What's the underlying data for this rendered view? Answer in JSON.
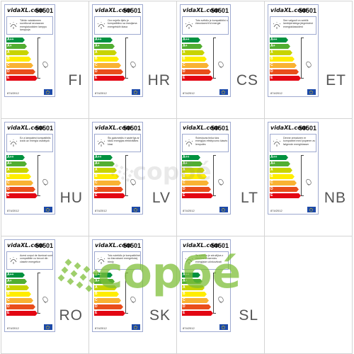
{
  "label": {
    "brand": "vidaXL.com",
    "model": "50501",
    "regulation": "874/2012",
    "classes": [
      "A++",
      "A+",
      "A",
      "B",
      "C",
      "D",
      "E"
    ],
    "class_colors": [
      "#00923f",
      "#52ae32",
      "#c8d400",
      "#ffed00",
      "#f9b233",
      "#e94e1b",
      "#e30613"
    ]
  },
  "cells": [
    {
      "lang": "FI",
      "text": "Tähän valaisimeen sovelluvat seuraavan energiaiuokkien lamppu lamppuja"
    },
    {
      "lang": "HR",
      "text": "Ovo svjetlo tijelo je kompatibilno sa žaruljama energetskih klasa"
    },
    {
      "lang": "CS",
      "text": "Toto svítidlo je kompatibilní s žárovkami tříd energie"
    },
    {
      "lang": "ET",
      "text": "See valgusti on sobilik lambipirnidega järgmistest energiaklassidest"
    },
    {
      "lang": "HU",
      "text": "Ez a lámpatest kompatibilis izzók az energia osztályok"
    },
    {
      "lang": "LV",
      "text": "Šis gaismeklis ir saderīgs ar šādu energijas efektivitātes klasi"
    },
    {
      "lang": "LT",
      "text": "Šviestuvas tinka šios energijos efektyvumo klasės lemputės"
    },
    {
      "lang": "NB",
      "text": "Denne armaturen er kompatibel med lyspærer av følgende energiklasser"
    },
    {
      "lang": "RO",
      "text": "Acest corpul de iluminat sunt compatibile cu becuri din clasele energetice"
    },
    {
      "lang": "SK",
      "text": "Toto svietidlo je kompatibilné so žiarovkami energetickej triedy"
    },
    {
      "lang": "SL",
      "text": "Ta svetilka je združljiva z žarnicami razredov energijske učinkovitosti"
    }
  ],
  "watermark": {
    "text": "copбé",
    "color": "#7fbf3a"
  }
}
